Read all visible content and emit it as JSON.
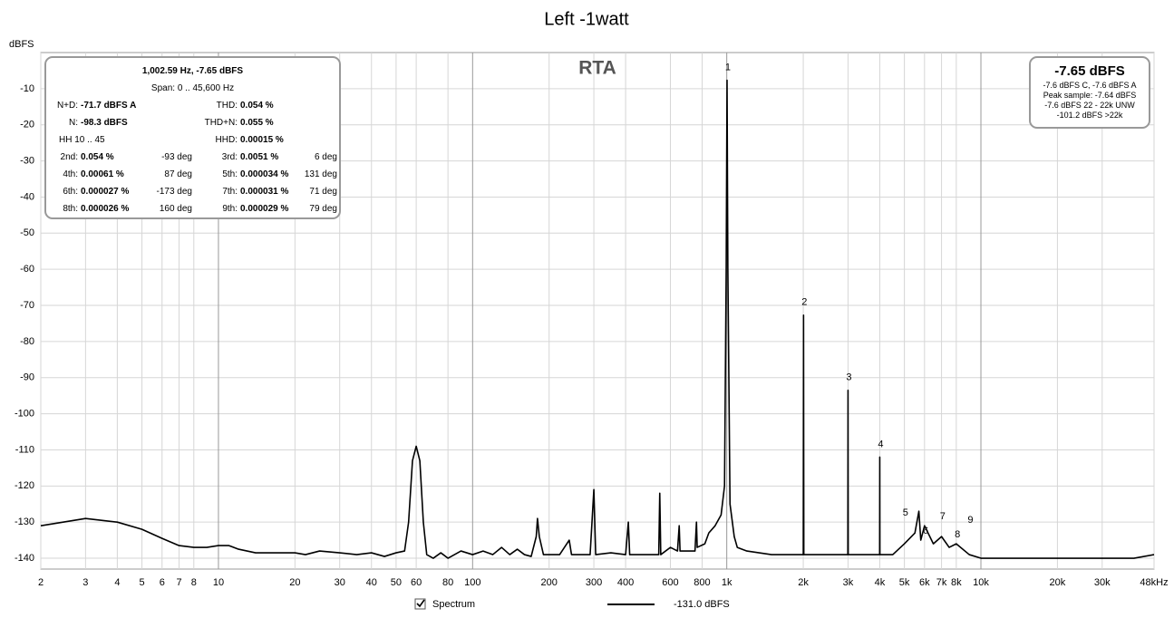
{
  "chart_data": {
    "type": "line",
    "title": "Left -1watt",
    "watermark": "RTA",
    "y_label": "dBFS",
    "xlog": true,
    "grid": true,
    "xlim": [
      2,
      48000
    ],
    "ylim": [
      -143,
      0
    ],
    "xticks": [
      2,
      3,
      4,
      5,
      6,
      7,
      8,
      10,
      20,
      30,
      40,
      50,
      60,
      80,
      100,
      200,
      300,
      400,
      600,
      800,
      {
        "value": 1000,
        "label": "1k"
      },
      {
        "value": 2000,
        "label": "2k"
      },
      {
        "value": 3000,
        "label": "3k"
      },
      {
        "value": 4000,
        "label": "4k"
      },
      {
        "value": 5000,
        "label": "5k"
      },
      {
        "value": 6000,
        "label": "6k"
      },
      {
        "value": 7000,
        "label": "7k"
      },
      {
        "value": 8000,
        "label": "8k"
      },
      {
        "value": 10000,
        "label": "10k"
      },
      {
        "value": 20000,
        "label": "20k"
      },
      {
        "value": 30000,
        "label": "30k"
      },
      {
        "value": 48000,
        "label": "48kHz"
      }
    ],
    "yticks": [
      -10,
      -20,
      -30,
      -40,
      -50,
      -60,
      -70,
      -80,
      -90,
      -100,
      -110,
      -120,
      -130,
      -140
    ],
    "series": [
      {
        "name": "Spectrum",
        "color": "#000000",
        "x": [
          2,
          3,
          4,
          5,
          6,
          7,
          8,
          9,
          10,
          11,
          12,
          14,
          17,
          20,
          22,
          25,
          30,
          35,
          40,
          45,
          50,
          54,
          56,
          58,
          60,
          62,
          64,
          66,
          70,
          75,
          80,
          90,
          100,
          110,
          120,
          130,
          140,
          150,
          160,
          170,
          178,
          180,
          183,
          190,
          220,
          240,
          245,
          290,
          300,
          305,
          350,
          400,
          410,
          415,
          480,
          540,
          545,
          550,
          600,
          640,
          650,
          655,
          750,
          760,
          765,
          820,
          850,
          900,
          950,
          980,
          995,
          1002.59,
          1010,
          1030,
          1070,
          1100,
          1200,
          1500,
          1900,
          2000,
          2005,
          2010,
          2500,
          2995,
          3000,
          3005,
          3500,
          3995,
          4000,
          4005,
          4500,
          5000,
          5500,
          5700,
          5800,
          6000,
          6500,
          7000,
          7500,
          8000,
          9000,
          10000,
          15000,
          20000,
          30000,
          40000,
          48000
        ],
        "values": [
          -131,
          -129,
          -130,
          -132,
          -134.5,
          -136.5,
          -137,
          -137,
          -136.5,
          -136.5,
          -137.5,
          -138.5,
          -138.5,
          -138.5,
          -139,
          -138,
          -138.5,
          -139,
          -138.5,
          -139.5,
          -138.5,
          -138,
          -130,
          -113,
          -109,
          -113,
          -130,
          -139,
          -140,
          -138.5,
          -140,
          -138,
          -139,
          -138,
          -139,
          -137,
          -139,
          -137.5,
          -139,
          -139.5,
          -134,
          -129,
          -134,
          -139,
          -139,
          -135,
          -139,
          -139,
          -121,
          -139,
          -138.5,
          -139,
          -130,
          -139,
          -139,
          -139,
          -122,
          -139,
          -137,
          -138,
          -131,
          -138,
          -138,
          -130,
          -137,
          -136,
          -133,
          -131,
          -128,
          -120,
          -60,
          -7.65,
          -60,
          -125,
          -134,
          -137,
          -138,
          -139,
          -139,
          -139,
          -72.7,
          -139,
          -139,
          -139,
          -93.5,
          -139,
          -139,
          -139,
          -112,
          -139,
          -139,
          -136,
          -133,
          -127,
          -135,
          -131,
          -136,
          -134,
          -137,
          -136,
          -139,
          -140,
          -140,
          -140,
          -140,
          -140,
          -139
        ]
      }
    ],
    "legend_value": "-131.0 dBFS",
    "harmonic_labels": [
      {
        "label": "1",
        "x": 1002.59,
        "y": -7.65
      },
      {
        "label": "2",
        "x": 2005,
        "y": -72.7
      },
      {
        "label": "3",
        "x": 3000,
        "y": -93.5
      },
      {
        "label": "4",
        "x": 4000,
        "y": -112
      },
      {
        "label": "5",
        "x": 5010,
        "y": -131
      },
      {
        "label": "6",
        "x": 6010,
        "y": -136
      },
      {
        "label": "7",
        "x": 7015,
        "y": -132
      },
      {
        "label": "8",
        "x": 8020,
        "y": -137
      },
      {
        "label": "9",
        "x": 9020,
        "y": -133
      }
    ]
  },
  "info_panel": {
    "lines": [
      "1,002.59 Hz, -7.65 dBFS",
      "Span: 0 .. 45,600 Hz"
    ],
    "summary": [
      {
        "left_label": "N+D:",
        "left_value": "-71.7 dBFS A",
        "right_label": "THD:",
        "right_value": "0.054 %"
      },
      {
        "left_label": "N:",
        "left_value": "-98.3 dBFS",
        "right_label": "THD+N:",
        "right_value": "0.055 %"
      },
      {
        "left_label": "HH 10 .. 45",
        "right_label": "HHD:",
        "right_value": "0.00015 %"
      }
    ],
    "harmonics": [
      [
        {
          "order": "2nd:",
          "level": "0.054 %",
          "phase": "-93 deg"
        },
        {
          "order": "3rd:",
          "level": "0.0051 %",
          "phase": "6 deg"
        }
      ],
      [
        {
          "order": "4th:",
          "level": "0.00061 %",
          "phase": "87 deg"
        },
        {
          "order": "5th:",
          "level": "0.000034 %",
          "phase": "131 deg"
        }
      ],
      [
        {
          "order": "6th:",
          "level": "0.000027 %",
          "phase": "-173 deg"
        },
        {
          "order": "7th:",
          "level": "0.000031 %",
          "phase": "71 deg"
        }
      ],
      [
        {
          "order": "8th:",
          "level": "0.000026 %",
          "phase": "160 deg"
        },
        {
          "order": "9th:",
          "level": "0.000029 %",
          "phase": "79 deg"
        }
      ]
    ]
  },
  "level_panel": {
    "level": "-7.65 dBFS",
    "lines": [
      "-7.6 dBFS C, -7.6 dBFS A",
      "Peak sample: -7.64 dBFS",
      "-7.6 dBFS 22 - 22k UNW",
      "-101.2 dBFS >22k"
    ]
  }
}
